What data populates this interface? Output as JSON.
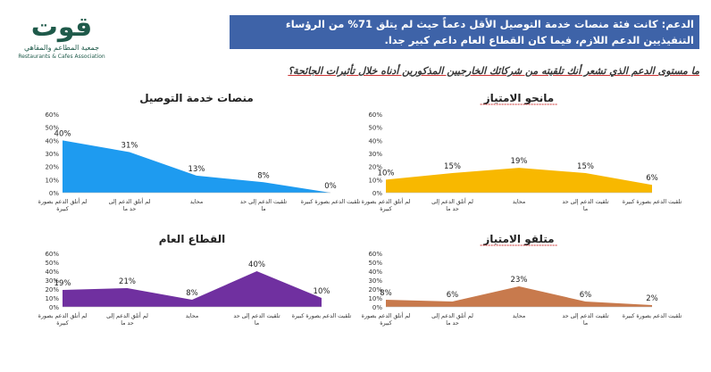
{
  "logo": {
    "mark": "قوت",
    "line1": "جمعية المطاعم والمقاهي",
    "line2": "Restaurants & Cafes Association"
  },
  "headline": "الدعم: كانت فئة منصات خدمة التوصيل الأقل دعماً حيث لم يتلق 71% من الرؤساء التنفيذيين الدعم اللازم، فيما كان القطاع العام داعم كبير جدا.",
  "question": "ما مستوى الدعم الذي تشعر أنك تلقيته من شركائك الخارجيين المذكورين أدناه خلال تأثيرات الجائحة؟",
  "chart_data": [
    {
      "type": "area",
      "title": "منصات خدمة التوصيل",
      "title_underline": false,
      "color": "#1e9bf0",
      "categories": [
        "لم أتلق الدعم بصورة كبيرة",
        "لم أتلق الدعم إلى حد ما",
        "محايد",
        "تلقيت الدعم إلى حد ما",
        "تلقيت الدعم بصورة كبيرة"
      ],
      "values": [
        40,
        31,
        13,
        8,
        0
      ],
      "labels": [
        "40%",
        "31%",
        "13%",
        "8%",
        "0%"
      ],
      "yticks": [
        "0%",
        "10%",
        "20%",
        "30%",
        "40%",
        "50%",
        "60%"
      ],
      "ylim": [
        0,
        60
      ]
    },
    {
      "type": "area",
      "title": "مانحو الامتياز",
      "title_underline": true,
      "color": "#f8b800",
      "categories": [
        "لم أتلق الدعم بصورة كبيرة",
        "لم أتلق الدعم إلى حد ما",
        "محايد",
        "تلقيت الدعم إلى حد ما",
        "تلقيت الدعم بصورة كبيرة"
      ],
      "values": [
        10,
        15,
        19,
        15,
        6
      ],
      "labels": [
        "10%",
        "15%",
        "19%",
        "15%",
        "6%"
      ],
      "yticks": [
        "0%",
        "10%",
        "20%",
        "30%",
        "40%",
        "50%",
        "60%"
      ],
      "ylim": [
        0,
        60
      ]
    },
    {
      "type": "area",
      "title": "القطاع العام",
      "title_underline": false,
      "color": "#7030a0",
      "categories": [
        "لم أتلق الدعم بصورة كبيرة",
        "لم أتلق الدعم إلى حد ما",
        "محايد",
        "تلقيت الدعم إلى حد ما",
        "تلقيت الدعم بصورة كبيرة"
      ],
      "values": [
        19,
        21,
        8,
        40,
        10
      ],
      "labels": [
        "19%",
        "21%",
        "8%",
        "40%",
        "10%"
      ],
      "yticks": [
        "0%",
        "10%",
        "20%",
        "30%",
        "40%",
        "50%",
        "60%"
      ],
      "ylim": [
        0,
        60
      ]
    },
    {
      "type": "area",
      "title": "متلقو الامتياز",
      "title_underline": true,
      "color": "#c87a4d",
      "categories": [
        "لم أتلق الدعم بصورة كبيرة",
        "لم أتلق الدعم إلى حد ما",
        "محايد",
        "تلقيت الدعم إلى حد ما",
        "تلقيت الدعم بصورة كبيرة"
      ],
      "values": [
        8,
        6,
        23,
        6,
        2
      ],
      "labels": [
        "8%",
        "6%",
        "23%",
        "6%",
        "2%"
      ],
      "yticks": [
        "0%",
        "10%",
        "20%",
        "30%",
        "40%",
        "50%",
        "60%"
      ],
      "ylim": [
        0,
        60
      ]
    }
  ]
}
